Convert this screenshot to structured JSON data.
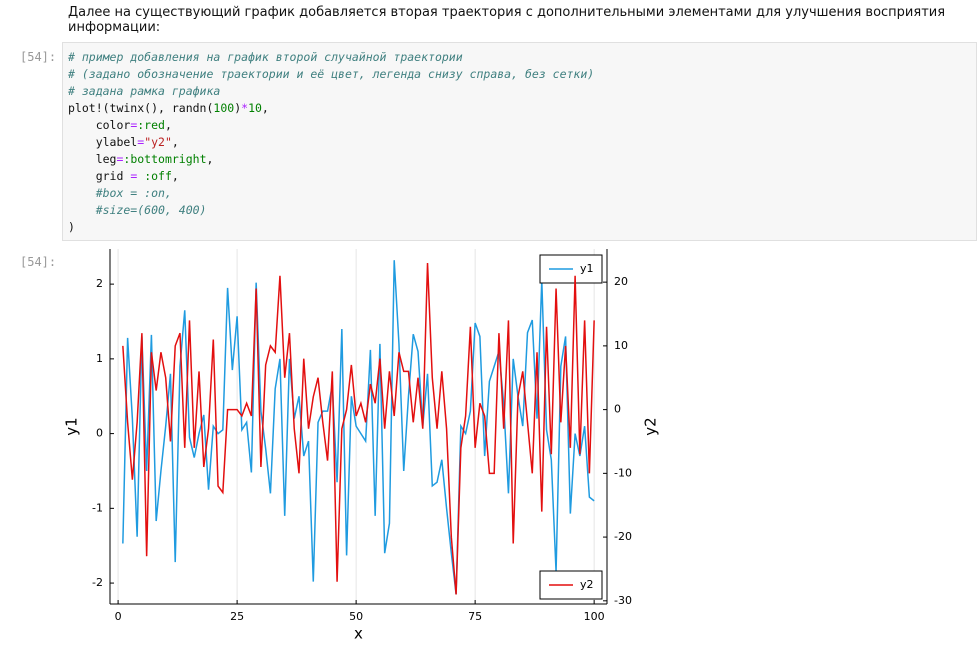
{
  "intro": "Далее на существующий график добавляется вторая траектория с дополнительными элементами для улучшения восприятия информации:",
  "code_cell": {
    "prompt": "[54]:",
    "lines": [
      [
        {
          "t": "# пример добавления на график второй случайной траектории",
          "k": "comment"
        }
      ],
      [
        {
          "t": "# (задано обозначение траектории и её цвет, легенда снизу справа, без сетки)",
          "k": "comment"
        }
      ],
      [
        {
          "t": "# задана рамка графика",
          "k": "comment"
        }
      ],
      [
        {
          "t": "plot!(twinx(), randn(",
          "k": "plain"
        },
        {
          "t": "100",
          "k": "number"
        },
        {
          "t": ")",
          "k": "plain"
        },
        {
          "t": "*",
          "k": "op"
        },
        {
          "t": "10",
          "k": "number"
        },
        {
          "t": ",",
          "k": "plain"
        }
      ],
      [
        {
          "t": "    color",
          "k": "plain"
        },
        {
          "t": "=",
          "k": "op"
        },
        {
          "t": ":red",
          "k": "number"
        },
        {
          "t": ",",
          "k": "plain"
        }
      ],
      [
        {
          "t": "    ylabel",
          "k": "plain"
        },
        {
          "t": "=",
          "k": "op"
        },
        {
          "t": "\"y2\"",
          "k": "string"
        },
        {
          "t": ",",
          "k": "plain"
        }
      ],
      [
        {
          "t": "    leg",
          "k": "plain"
        },
        {
          "t": "=",
          "k": "op"
        },
        {
          "t": ":bottomright",
          "k": "number"
        },
        {
          "t": ",",
          "k": "plain"
        }
      ],
      [
        {
          "t": "    grid ",
          "k": "plain"
        },
        {
          "t": "=",
          "k": "op"
        },
        {
          "t": " ",
          "k": "plain"
        },
        {
          "t": ":off",
          "k": "number"
        },
        {
          "t": ",",
          "k": "plain"
        }
      ],
      [
        {
          "t": "    #box = :on,",
          "k": "comment"
        }
      ],
      [
        {
          "t": "    #size=(600, 400)",
          "k": "comment"
        }
      ],
      [
        {
          "t": ")",
          "k": "plain"
        }
      ]
    ]
  },
  "output_prompt": "[54]:",
  "chart_data": {
    "type": "line",
    "xlabel": "x",
    "ylabel": "y1",
    "y2label": "y2",
    "x": [
      1,
      2,
      3,
      4,
      5,
      6,
      7,
      8,
      9,
      10,
      11,
      12,
      13,
      14,
      15,
      16,
      17,
      18,
      19,
      20,
      21,
      22,
      23,
      24,
      25,
      26,
      27,
      28,
      29,
      30,
      31,
      32,
      33,
      34,
      35,
      36,
      37,
      38,
      39,
      40,
      41,
      42,
      43,
      44,
      45,
      46,
      47,
      48,
      49,
      50,
      51,
      52,
      53,
      54,
      55,
      56,
      57,
      58,
      59,
      60,
      61,
      62,
      63,
      64,
      65,
      66,
      67,
      68,
      69,
      70,
      71,
      72,
      73,
      74,
      75,
      76,
      77,
      78,
      79,
      80,
      81,
      82,
      83,
      84,
      85,
      86,
      87,
      88,
      89,
      90,
      91,
      92,
      93,
      94,
      95,
      96,
      97,
      98,
      99,
      100
    ],
    "xlim": [
      -1.7,
      102.7
    ],
    "xticks": [
      0,
      25,
      50,
      75,
      100
    ],
    "xgrid": true,
    "ylim": [
      -2.28,
      2.47
    ],
    "yticks": [
      -2,
      -1,
      0,
      1,
      2
    ],
    "y2lim": [
      -30.5,
      25.2
    ],
    "y2ticks": [
      -30,
      -20,
      -10,
      0,
      10,
      20
    ],
    "series": [
      {
        "name": "y1",
        "color": "#1f9be0",
        "legend": "topright",
        "values": [
          -1.47,
          1.28,
          0.2,
          -1.38,
          1.3,
          -0.5,
          1.32,
          -1.17,
          -0.5,
          0.1,
          0.8,
          -1.72,
          0.9,
          1.65,
          -0.05,
          -0.32,
          0.0,
          0.25,
          -0.75,
          0.1,
          0.0,
          0.05,
          1.95,
          0.85,
          1.57,
          0.05,
          0.15,
          -0.52,
          2.02,
          0.3,
          -0.2,
          -0.8,
          0.6,
          1.0,
          -1.1,
          1.0,
          0.2,
          0.5,
          -0.3,
          -0.1,
          -1.98,
          0.15,
          0.3,
          0.3,
          0.65,
          -0.65,
          1.4,
          -1.63,
          0.5,
          0.1,
          0.0,
          -0.1,
          1.12,
          -1.1,
          1.2,
          -1.6,
          -1.2,
          2.32,
          1.2,
          -0.5,
          0.5,
          1.33,
          1.1,
          0.1,
          0.8,
          -0.7,
          -0.65,
          -0.35,
          -1.0,
          -1.6,
          -2.15,
          0.1,
          0.0,
          0.3,
          1.48,
          1.3,
          -0.3,
          0.7,
          0.9,
          1.1,
          0.4,
          -0.8,
          1.0,
          0.5,
          0.1,
          1.35,
          1.52,
          0.2,
          2.05,
          0.05,
          -0.35,
          -1.85,
          0.9,
          1.3,
          -1.07,
          0.0,
          -0.3,
          0.1,
          -0.85,
          -0.9
        ]
      },
      {
        "name": "y2",
        "color": "#e30f0f",
        "axis": "y2",
        "legend": "bottomright",
        "values": [
          10,
          -2,
          -11,
          -2,
          12,
          -23,
          9,
          3,
          9,
          5,
          -5,
          10,
          12,
          -6,
          14,
          -6,
          6,
          -9,
          -3,
          11,
          -12,
          -13,
          0,
          0,
          0,
          -1,
          1,
          -1,
          19,
          -9,
          7,
          10,
          9,
          21,
          5,
          12,
          -3,
          -10,
          8,
          -3,
          2,
          5,
          -2,
          -8,
          6,
          -27,
          -3,
          0,
          7,
          -1,
          1,
          -2,
          4,
          1,
          8,
          -3,
          6,
          -1,
          9,
          6,
          6,
          -2,
          5,
          -3,
          23,
          5,
          -3,
          6,
          -3,
          -20,
          -29,
          -6,
          -1,
          13,
          -6,
          1,
          -1,
          -10,
          -10,
          12,
          -3,
          14,
          -21,
          2,
          6,
          -2,
          -10,
          9,
          -16,
          13,
          -7,
          19,
          -2,
          10,
          -6,
          21,
          -7,
          14,
          -10,
          14
        ]
      }
    ]
  }
}
